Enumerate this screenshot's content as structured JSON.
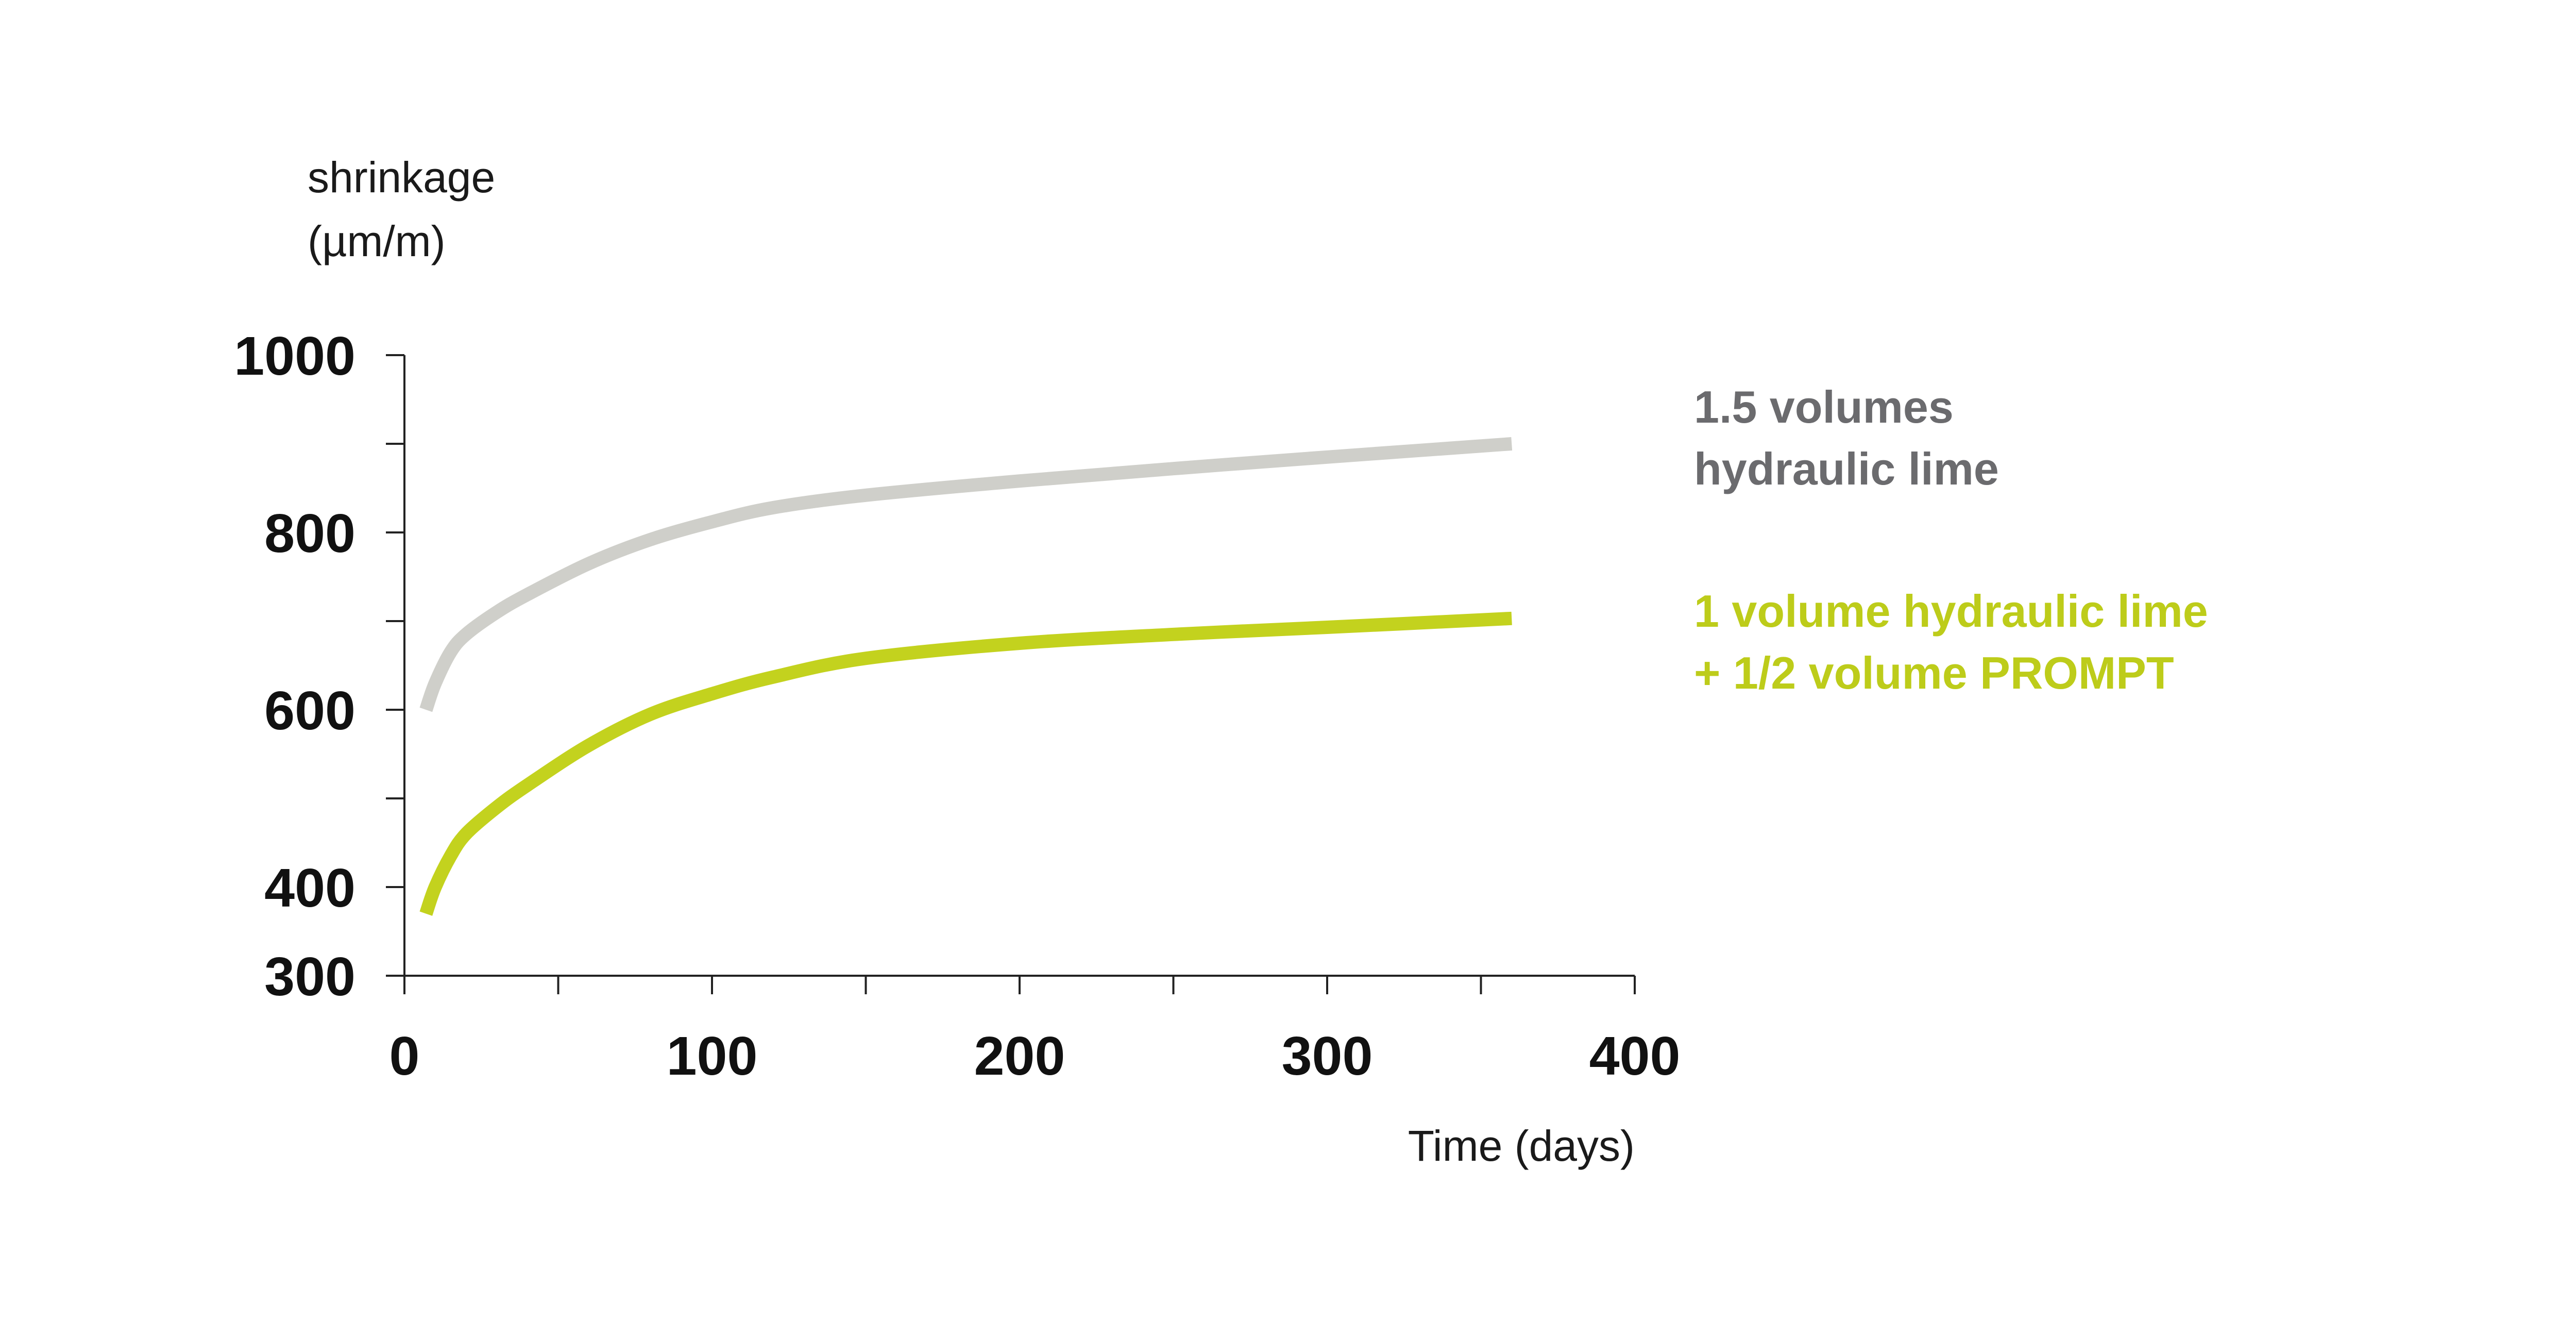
{
  "chart_data": {
    "type": "line",
    "ylabel_line1": "shrinkage",
    "ylabel_line2": "(µm/m)",
    "xlabel": "Time (days)",
    "xlim": [
      0,
      400
    ],
    "ylim": [
      300,
      1000
    ],
    "x_ticks": [
      "0",
      "100",
      "200",
      "300",
      "400"
    ],
    "y_ticks": [
      "300",
      "400",
      "600",
      "800",
      "1000"
    ],
    "y_tick_values": [
      300,
      400,
      600,
      800,
      1000
    ],
    "x_tick_values": [
      0,
      100,
      200,
      300,
      400
    ],
    "x_minor_tick_values": [
      50,
      150,
      250,
      350
    ],
    "y_minor_tick_values": [
      500,
      700,
      900
    ],
    "grid": false,
    "legend_placement": "right",
    "series": [
      {
        "legend_line1": "1.5 volumes",
        "legend_line2": "hydraulic lime",
        "color": "#cfcfca",
        "label_color": "#6b6b6e",
        "x": [
          7,
          10,
          15,
          20,
          30,
          40,
          60,
          80,
          100,
          120,
          150,
          200,
          250,
          300,
          360
        ],
        "y": [
          600,
          630,
          665,
          685,
          710,
          730,
          765,
          792,
          812,
          828,
          842,
          858,
          872,
          885,
          900
        ]
      },
      {
        "legend_line1": "1 volume hydraulic lime",
        "legend_line2": "+ 1/2 volume PROMPT",
        "color": "#c3d21e",
        "label_color": "#bdcc1a",
        "x": [
          7,
          10,
          15,
          20,
          30,
          40,
          60,
          80,
          100,
          120,
          150,
          200,
          250,
          300,
          360
        ],
        "y": [
          370,
          400,
          435,
          460,
          490,
          515,
          560,
          595,
          618,
          637,
          658,
          675,
          685,
          693,
          703
        ]
      }
    ]
  }
}
